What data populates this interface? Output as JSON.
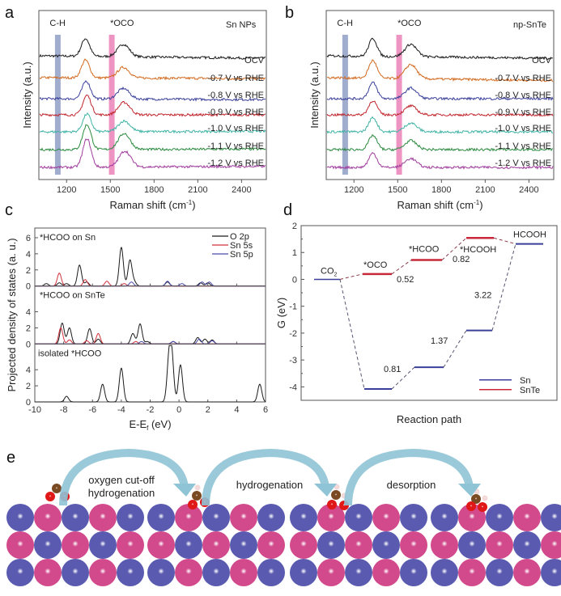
{
  "colors": {
    "black": "#1a1a1a",
    "orange": "#d2691e",
    "blue": "#3a3f9a",
    "red": "#c0262d",
    "teal": "#3fb3a5",
    "green": "#2a8a3e",
    "purple": "#a03c9e",
    "ch_band": "#8a98c2",
    "oco_band": "#e879b3",
    "sn_level": "#3a3f9a",
    "snte_level": "#c8283a",
    "pdos_o2p": "#1a1a1a",
    "pdos_sn5s": "#d0303a",
    "pdos_sn5p": "#4a4aaa",
    "atom_sn": "#5a5ab0",
    "atom_te": "#d24a8c",
    "atom_c": "#7a4a22",
    "atom_o": "#e01818",
    "atom_h": "#f2d8d8",
    "arrow": "#8fc4d6"
  },
  "chart_data": [
    {
      "panel": "a",
      "type": "line",
      "title": "Sn NPs",
      "xlabel": "Raman shift (cm⁻¹)",
      "ylabel": "Intensity (a.u.)",
      "xlim": [
        1010,
        2570
      ],
      "xticks": [
        1200,
        1500,
        1800,
        2100,
        2400
      ],
      "bands": [
        {
          "label": "C-H",
          "center": 1140
        },
        {
          "label": "*OCO",
          "center": 1510
        }
      ],
      "series": [
        {
          "name": "black (top)",
          "label": "",
          "color": "black",
          "peaks": [
            [
              1330,
              1.0
            ],
            [
              1590,
              0.7
            ]
          ],
          "baseline_tilt": -0.25
        },
        {
          "name": "OCV",
          "label": "OCV",
          "color": "orange",
          "peaks": [
            [
              1330,
              1.0
            ],
            [
              1590,
              0.6
            ]
          ],
          "baseline_tilt": -0.1
        },
        {
          "name": "-0.7 V vs RHE",
          "label": "-0.7 V vs RHE",
          "color": "blue",
          "peaks": [
            [
              1335,
              1.0
            ],
            [
              1590,
              0.6
            ]
          ],
          "baseline_tilt": -0.1
        },
        {
          "name": "-0.8 V vs RHE",
          "label": "-0.8 V vs RHE",
          "color": "red",
          "peaks": [
            [
              1340,
              1.1
            ],
            [
              1595,
              0.7
            ]
          ],
          "baseline_tilt": 0.0
        },
        {
          "name": "-0.9 V vs RHE",
          "label": "-0.9 V vs RHE",
          "color": "teal",
          "peaks": [
            [
              1340,
              1.0
            ],
            [
              1595,
              0.6
            ]
          ],
          "baseline_tilt": 0.05
        },
        {
          "name": "-1.0 V vs RHE",
          "label": "-1.0 V vs RHE",
          "color": "green",
          "peaks": [
            [
              1340,
              1.4
            ],
            [
              1595,
              0.9
            ]
          ],
          "baseline_tilt": 0.05
        },
        {
          "name": "-1.1 V vs RHE",
          "label": "-1.1 V vs RHE",
          "color": "purple",
          "peaks": [
            [
              1340,
              1.6
            ],
            [
              1600,
              0.9
            ]
          ],
          "baseline_tilt": 0.1
        },
        {
          "name": "-1.2 V vs RHE",
          "label": "-1.2 V vs RHE",
          "color": "purple",
          "peaks": [],
          "baseline_tilt": 0.0,
          "label_only": true
        }
      ],
      "series_labels": [
        "OCV",
        "-0.7 V vs RHE",
        "-0.8 V vs RHE",
        "-0.9 V vs RHE",
        "-1.0 V vs RHE",
        "-1.1 V vs RHE",
        "-1.2 V vs RHE"
      ]
    },
    {
      "panel": "b",
      "type": "line",
      "title": "np-SnTe",
      "xlabel": "Raman shift (cm⁻¹)",
      "ylabel": "Intensity (a.u.)",
      "xlim": [
        1010,
        2570
      ],
      "xticks": [
        1200,
        1500,
        1800,
        2100,
        2400
      ],
      "bands": [
        {
          "label": "C-H",
          "center": 1140
        },
        {
          "label": "*OCO",
          "center": 1510
        }
      ],
      "series": [
        {
          "name": "black (top)",
          "color": "black",
          "peaks": [
            [
              1330,
              1.0
            ],
            [
              1590,
              0.7
            ]
          ],
          "baseline_tilt": -0.25
        },
        {
          "name": "OCV",
          "color": "orange",
          "peaks": [
            [
              1330,
              1.0
            ],
            [
              1590,
              0.8
            ]
          ],
          "baseline_tilt": -0.3
        },
        {
          "name": "-0.7 V vs RHE",
          "color": "blue",
          "peaks": [
            [
              1330,
              0.9
            ],
            [
              1590,
              0.6
            ]
          ],
          "baseline_tilt": 0.0
        },
        {
          "name": "-0.8 V vs RHE",
          "color": "red",
          "peaks": [
            [
              1330,
              0.8
            ],
            [
              1590,
              0.5
            ]
          ],
          "baseline_tilt": 0.0
        },
        {
          "name": "-0.9 V vs RHE",
          "color": "teal",
          "peaks": [
            [
              1330,
              0.8
            ],
            [
              1590,
              0.5
            ]
          ],
          "baseline_tilt": 0.0
        },
        {
          "name": "-1.0 V vs RHE",
          "color": "green",
          "peaks": [
            [
              1330,
              0.8
            ],
            [
              1590,
              0.5
            ]
          ],
          "baseline_tilt": 0.0
        },
        {
          "name": "-1.1 V vs RHE",
          "color": "purple",
          "peaks": [
            [
              1330,
              0.8
            ],
            [
              1590,
              0.5
            ]
          ],
          "baseline_tilt": 0.0
        }
      ],
      "series_labels": [
        "OCV",
        "-0.7 V vs RHE",
        "-0.8 V vs RHE",
        "-0.9 V vs RHE",
        "-1.0 V vs RHE",
        "-1.1 V vs RHE",
        "-1.2 V vs RHE"
      ]
    },
    {
      "panel": "c",
      "type": "line",
      "xlabel": "E-Ef (eV)",
      "xlabel_main": "E-E",
      "xlabel_sub": "f",
      "xlabel_unit": " (eV)",
      "ylabel": "Projected density of states (a. u.)",
      "xlim": [
        -10,
        6
      ],
      "xticks": [
        -10,
        -8,
        -6,
        -4,
        -2,
        0,
        2,
        4,
        6
      ],
      "ylim": [
        0,
        7
      ],
      "legend": {
        "position": "top-right",
        "entries": [
          "O 2p",
          "Sn 5s",
          "Sn 5p"
        ]
      },
      "subplots": [
        {
          "title": "*HCOO on Sn",
          "yticks": [
            0,
            2,
            4,
            6
          ],
          "series": [
            {
              "name": "O 2p",
              "peaks": [
                [
                  -9.2,
                  0.3
                ],
                [
                  -8.3,
                  0.4
                ],
                [
                  -7.8,
                  0.3
                ],
                [
                  -6.9,
                  2.6
                ],
                [
                  -6.4,
                  0.5
                ],
                [
                  -4.0,
                  4.8
                ],
                [
                  -3.4,
                  3.2
                ],
                [
                  -3.1,
                  0.5
                ],
                [
                  -0.8,
                  0.5
                ],
                [
                  1.5,
                  0.4
                ],
                [
                  2.0,
                  0.4
                ]
              ]
            },
            {
              "name": "Sn 5s",
              "peaks": [
                [
                  -8.3,
                  1.6
                ],
                [
                  -6.5,
                  0.8
                ],
                [
                  -5.0,
                  0.6
                ],
                [
                  -3.8,
                  0.3
                ]
              ]
            },
            {
              "name": "Sn 5p",
              "peaks": [
                [
                  -3.3,
                  0.5
                ],
                [
                  -0.8,
                  0.6
                ],
                [
                  0.2,
                  0.3
                ],
                [
                  1.6,
                  0.5
                ],
                [
                  2.1,
                  0.5
                ]
              ]
            }
          ]
        },
        {
          "title": "*HCOO on SnTe",
          "yticks": [
            0,
            2,
            4
          ],
          "series": [
            {
              "name": "O 2p",
              "peaks": [
                [
                  -8.1,
                  2.6
                ],
                [
                  -7.6,
                  2.0
                ],
                [
                  -6.2,
                  1.9
                ],
                [
                  -5.6,
                  0.6
                ],
                [
                  -3.2,
                  1.3
                ],
                [
                  -2.7,
                  2.5
                ],
                [
                  -2.2,
                  0.3
                ],
                [
                  -0.4,
                  0.3
                ],
                [
                  1.3,
                  0.8
                ],
                [
                  1.8,
                  0.6
                ],
                [
                  2.3,
                  0.5
                ]
              ]
            },
            {
              "name": "Sn 5s",
              "peaks": [
                [
                  -8.2,
                  2.0
                ],
                [
                  -7.6,
                  0.5
                ],
                [
                  -6.4,
                  0.4
                ],
                [
                  -5.6,
                  1.3
                ],
                [
                  -3.0,
                  0.3
                ]
              ]
            },
            {
              "name": "Sn 5p",
              "peaks": [
                [
                  -2.6,
                  0.3
                ],
                [
                  -0.4,
                  0.3
                ],
                [
                  1.4,
                  0.6
                ],
                [
                  2.3,
                  0.4
                ]
              ]
            }
          ]
        },
        {
          "title": "isolated *HCOO",
          "yticks": [
            0,
            2,
            4
          ],
          "series": [
            {
              "name": "O 2p",
              "peaks": [
                [
                  -7.8,
                  0.7
                ],
                [
                  -5.3,
                  2.2
                ],
                [
                  -4.0,
                  4.2
                ],
                [
                  -0.7,
                  4.8
                ],
                [
                  -0.5,
                  5.3
                ],
                [
                  0.1,
                  4.6
                ],
                [
                  5.6,
                  2.2
                ]
              ]
            }
          ]
        }
      ]
    },
    {
      "panel": "d",
      "type": "line",
      "xlabel": "Reaction path",
      "ylabel": "G (eV)",
      "ylim": [
        -4.5,
        2
      ],
      "yticks": [
        2,
        1,
        0,
        -1,
        -2,
        -3,
        -4
      ],
      "legend": {
        "position": "bottom-right",
        "entries": [
          "Sn",
          "SnTe"
        ]
      },
      "states": [
        "CO2",
        "*OCO",
        "*HCOO",
        "*HCOOH",
        "HCOOH"
      ],
      "state_labels": {
        "co2": "CO",
        "co2_sub": "2",
        "oco": "*OCO",
        "hcoo": "*HCOO",
        "hcooh_ads": "*HCOOH",
        "hcooh": "HCOOH"
      },
      "series": [
        {
          "name": "Sn",
          "values": [
            0,
            -4.08,
            -3.27,
            -1.9,
            1.32
          ],
          "barriers": [
            "0.81",
            "1.37",
            "3.22"
          ]
        },
        {
          "name": "SnTe",
          "values": [
            0,
            0.2,
            0.72,
            1.54,
            1.32
          ],
          "barriers": [
            "0.52",
            "0.82"
          ]
        }
      ]
    }
  ],
  "panel_labels": {
    "a": "a",
    "b": "b",
    "c": "c",
    "d": "d",
    "e": "e"
  },
  "axes_text": {
    "raman_x": "Raman shift (cm",
    "raman_x_sup": "-1",
    "raman_x_close": ")",
    "intensity_y": "Intensity (a.u.)",
    "ch": "C-H",
    "oco": "*OCO",
    "sn_nps": "Sn NPs",
    "np_snte": "np-SnTe"
  },
  "scheme_e": {
    "steps": [
      {
        "label_line1": "oxygen cut-off",
        "label_line2": "hydrogenation"
      },
      {
        "label_line1": "hydrogenation",
        "label_line2": ""
      },
      {
        "label_line1": "desorption",
        "label_line2": ""
      }
    ],
    "slab_rows": 3,
    "slab_cols": 5
  }
}
